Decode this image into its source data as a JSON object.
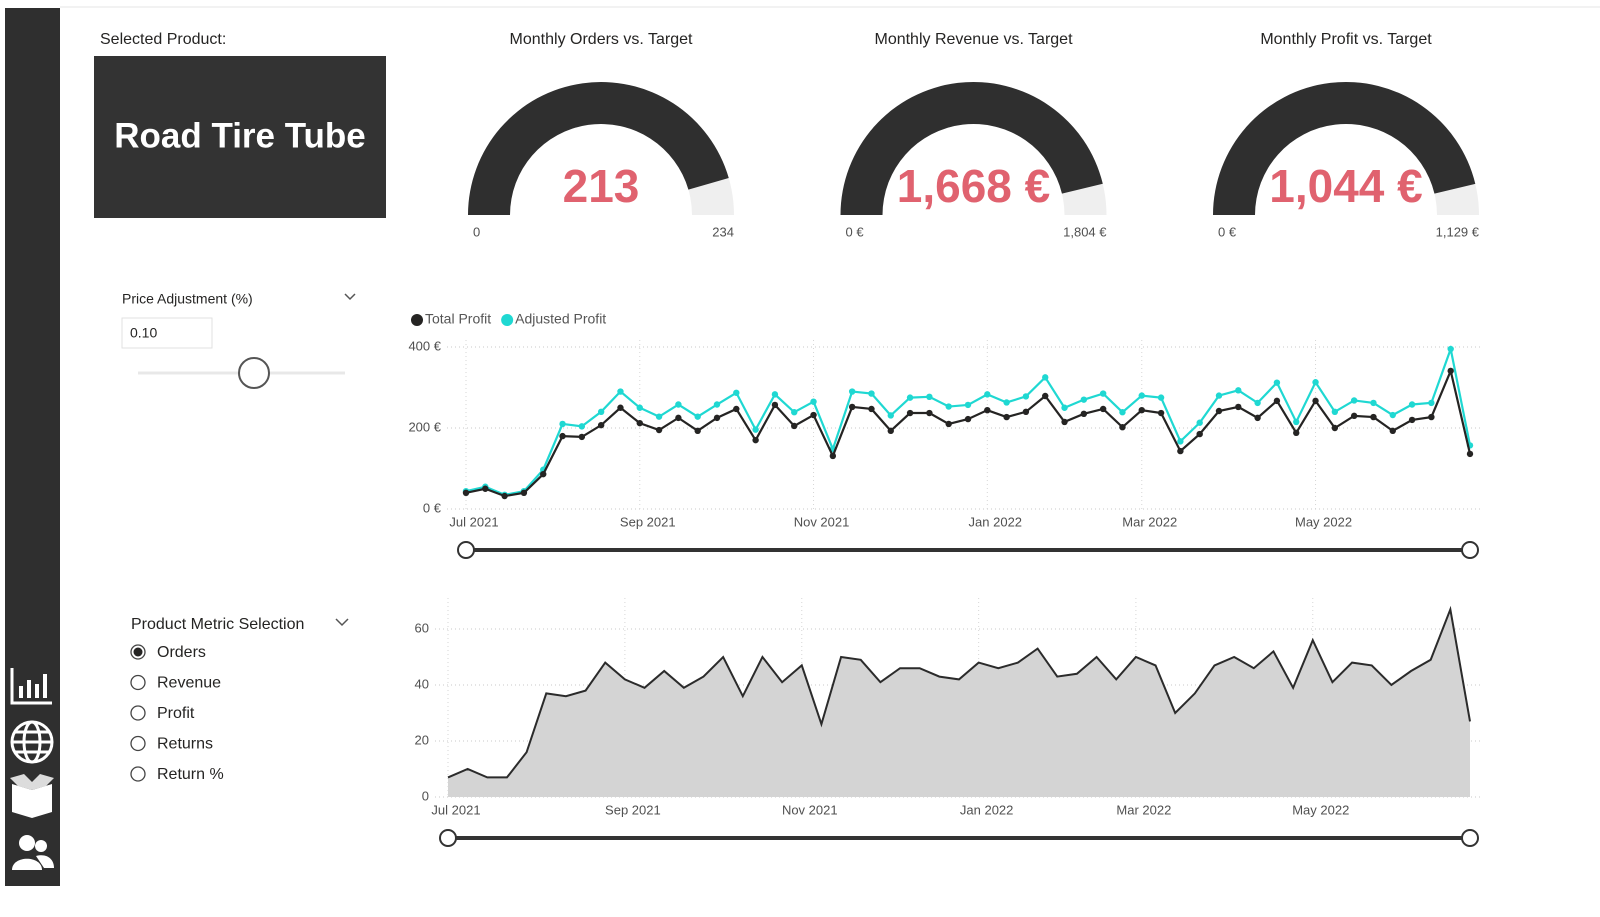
{
  "selected_product": {
    "label": "Selected Product:",
    "name": "Road Tire Tube"
  },
  "gauges": [
    {
      "title": "Monthly Orders vs. Target",
      "value": 213,
      "min": 0,
      "max": 234
    },
    {
      "title": "Monthly Revenue vs. Target",
      "value": 1668,
      "value_label": "1,668 €",
      "min": {
        "value": 0,
        "label": "0 €"
      },
      "max": {
        "value": 1804,
        "label": "1,804 €"
      }
    },
    {
      "title": "Monthly Profit vs. Target",
      "value": 1044,
      "value_label": "1,044 €",
      "min": {
        "value": 0,
        "label": "0 €"
      },
      "max": {
        "value": 1129,
        "label": "1,129 €"
      }
    }
  ],
  "price_adjustment": {
    "title": "Price Adjustment (%)",
    "value": "0.10"
  },
  "metric_selection": {
    "title": "Product Metric Selection",
    "options": [
      "Orders",
      "Revenue",
      "Profit",
      "Returns",
      "Return %"
    ],
    "selected": 0
  },
  "profit_chart": {
    "type": "line",
    "categories": [
      "Jul 2021",
      null,
      null,
      null,
      null,
      null,
      null,
      null,
      null,
      "Sep 2021",
      null,
      null,
      null,
      null,
      null,
      null,
      null,
      null,
      "Nov 2021",
      null,
      null,
      null,
      null,
      null,
      null,
      null,
      null,
      "Jan 2022",
      null,
      null,
      null,
      null,
      null,
      null,
      null,
      "Mar 2022",
      null,
      null,
      null,
      null,
      null,
      null,
      null,
      null,
      "May 2022",
      null,
      null,
      null,
      null,
      null,
      null,
      null,
      null
    ],
    "series": [
      {
        "name": "Total Profit",
        "color": "#252423",
        "values": [
          40,
          50,
          32,
          40,
          86,
          180,
          178,
          207,
          250,
          212,
          195,
          225,
          193,
          225,
          247,
          170,
          257,
          205,
          232,
          131,
          252,
          247,
          193,
          237,
          237,
          210,
          222,
          244,
          227,
          240,
          279,
          215,
          235,
          247,
          202,
          244,
          237,
          143,
          185,
          242,
          252,
          225,
          267,
          188,
          267,
          200,
          230,
          227,
          193,
          220,
          227,
          341,
          136
        ]
      },
      {
        "name": "Adjusted Profit",
        "color": "#1fd8d2",
        "values": [
          44,
          55,
          35,
          44,
          97,
          210,
          204,
          240,
          290,
          250,
          228,
          258,
          228,
          258,
          287,
          196,
          283,
          239,
          265,
          148,
          290,
          285,
          231,
          275,
          277,
          253,
          257,
          283,
          263,
          278,
          325,
          250,
          270,
          285,
          239,
          280,
          275,
          167,
          213,
          280,
          293,
          262,
          312,
          215,
          313,
          240,
          268,
          262,
          232,
          258,
          262,
          395,
          157
        ]
      }
    ],
    "ylim": [
      0,
      400
    ],
    "yticks": [
      {
        "value": 0,
        "label": "0 €"
      },
      {
        "value": 200,
        "label": "200 €"
      },
      {
        "value": 400,
        "label": "400 €"
      }
    ],
    "grid": true,
    "legend": "top-left"
  },
  "orders_chart": {
    "type": "area",
    "categories": [
      "Jul 2021",
      null,
      null,
      null,
      null,
      null,
      null,
      null,
      null,
      "Sep 2021",
      null,
      null,
      null,
      null,
      null,
      null,
      null,
      null,
      "Nov 2021",
      null,
      null,
      null,
      null,
      null,
      null,
      null,
      null,
      "Jan 2022",
      null,
      null,
      null,
      null,
      null,
      null,
      null,
      "Mar 2022",
      null,
      null,
      null,
      null,
      null,
      null,
      null,
      null,
      "May 2022",
      null,
      null,
      null,
      null,
      null,
      null,
      null,
      null
    ],
    "values": [
      7,
      10,
      7,
      7,
      16,
      37,
      36,
      38,
      48,
      42,
      39,
      45,
      39,
      43,
      50,
      36,
      50,
      41,
      47,
      26,
      50,
      49,
      41,
      46,
      46,
      43,
      42,
      48,
      46,
      48,
      53,
      43,
      44,
      50,
      42,
      50,
      47,
      30,
      37,
      47,
      50,
      46,
      52,
      39,
      56,
      41,
      48,
      47,
      40,
      45,
      49,
      67,
      27
    ],
    "color": "#d4d4d4",
    "line_color": "#2b2b2b",
    "ylim": [
      0,
      70
    ],
    "yticks": [
      0,
      20,
      40,
      60
    ],
    "grid": true
  }
}
